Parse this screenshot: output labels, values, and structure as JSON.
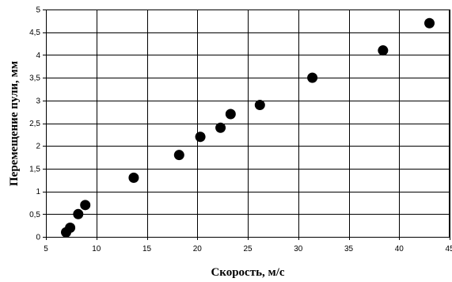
{
  "chart_data": {
    "type": "scatter",
    "title": "",
    "xlabel": "Скорость, м/с",
    "ylabel": "Перемещение пули, мм",
    "xlim": [
      5,
      45
    ],
    "ylim": [
      0,
      5
    ],
    "x_ticks": [
      5,
      10,
      15,
      20,
      25,
      30,
      35,
      40,
      45
    ],
    "y_ticks": [
      0,
      0.5,
      1,
      1.5,
      2,
      2.5,
      3,
      3.5,
      4,
      4.5,
      5
    ],
    "x_tick_labels": [
      "5",
      "10",
      "15",
      "20",
      "25",
      "30",
      "35",
      "40",
      "45"
    ],
    "y_tick_labels": [
      "0",
      "0,5",
      "1",
      "1,5",
      "2",
      "2,5",
      "3",
      "3,5",
      "4",
      "4,5",
      "5"
    ],
    "grid": true,
    "legend": "none",
    "marker_color": "#000000",
    "series": [
      {
        "points": [
          {
            "x": 7.0,
            "y": 0.1
          },
          {
            "x": 7.4,
            "y": 0.2
          },
          {
            "x": 8.2,
            "y": 0.5
          },
          {
            "x": 8.9,
            "y": 0.7
          },
          {
            "x": 13.7,
            "y": 1.3
          },
          {
            "x": 18.2,
            "y": 1.8
          },
          {
            "x": 20.3,
            "y": 2.2
          },
          {
            "x": 22.3,
            "y": 2.4
          },
          {
            "x": 23.3,
            "y": 2.7
          },
          {
            "x": 26.2,
            "y": 2.9
          },
          {
            "x": 31.4,
            "y": 3.5
          },
          {
            "x": 38.4,
            "y": 4.1
          },
          {
            "x": 43.0,
            "y": 4.7
          }
        ]
      }
    ]
  }
}
